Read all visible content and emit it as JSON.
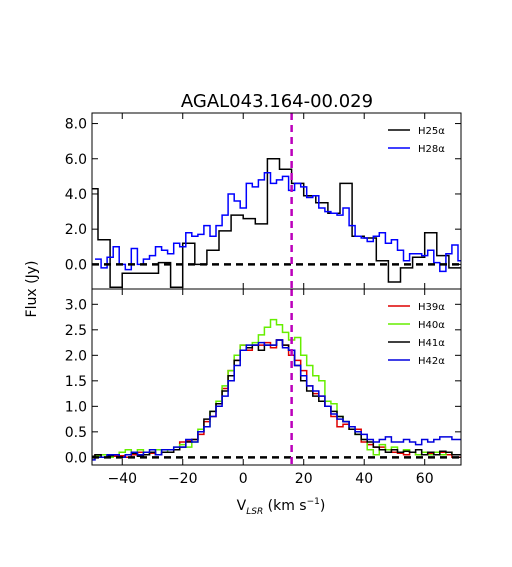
{
  "chart_data": [
    {
      "type": "line",
      "panel": "top",
      "title": "AGAL043.164-00.029",
      "ylabel": "Flux (Jy)",
      "xlim": [
        -50,
        72
      ],
      "ylim": [
        -1.4,
        8.6
      ],
      "yticks": [
        0.0,
        2.0,
        4.0,
        6.0,
        8.0
      ],
      "ytick_labels": [
        "0.0",
        "2.0",
        "4.0",
        "6.0",
        "8.0"
      ],
      "reference_velocity": 16.0,
      "zero_line": 0.0,
      "legend_position": "top-right",
      "series": [
        {
          "name": "H25α",
          "color": "#000000",
          "step": "mid",
          "x": [
            -50,
            -46,
            -42,
            -38,
            -34,
            -30,
            -26,
            -22,
            -18,
            -14,
            -10,
            -6,
            -2,
            2,
            6,
            10,
            14,
            18,
            22,
            26,
            30,
            34,
            38,
            42,
            46,
            50,
            54,
            58,
            62,
            66,
            70,
            72
          ],
          "y": [
            4.3,
            1.4,
            -1.3,
            -0.5,
            -0.5,
            -0.5,
            0.1,
            -1.3,
            1.2,
            0.0,
            0.8,
            1.9,
            2.8,
            2.6,
            2.3,
            6.0,
            5.4,
            4.6,
            3.9,
            3.5,
            2.9,
            4.6,
            1.6,
            1.5,
            0.2,
            -1.0,
            -0.2,
            0.4,
            1.8,
            0.5,
            -0.2,
            -0.2
          ]
        },
        {
          "name": "H28α",
          "color": "#0000ff",
          "step": "mid",
          "x": [
            -48,
            -46,
            -44,
            -42,
            -40,
            -38,
            -36,
            -34,
            -32,
            -30,
            -28,
            -26,
            -24,
            -22,
            -20,
            -18,
            -16,
            -14,
            -12,
            -10,
            -8,
            -6,
            -4,
            -2,
            0,
            2,
            4,
            6,
            8,
            10,
            12,
            14,
            16,
            18,
            20,
            22,
            24,
            26,
            28,
            30,
            32,
            34,
            36,
            38,
            40,
            42,
            44,
            46,
            48,
            50,
            52,
            54,
            56,
            58,
            60,
            62,
            64,
            66,
            68,
            70,
            72
          ],
          "y": [
            0.3,
            -0.2,
            0.4,
            1.0,
            0.0,
            -0.3,
            0.9,
            0.0,
            0.3,
            0.5,
            1.0,
            0.8,
            0.6,
            1.2,
            1.0,
            1.8,
            1.6,
            1.7,
            2.2,
            1.6,
            2.2,
            2.8,
            4.0,
            3.6,
            3.2,
            4.6,
            4.4,
            4.8,
            5.2,
            4.6,
            4.8,
            5.0,
            4.2,
            4.6,
            4.4,
            3.8,
            3.9,
            3.2,
            3.0,
            2.9,
            2.8,
            3.2,
            2.2,
            1.6,
            1.5,
            1.3,
            1.6,
            1.8,
            1.2,
            1.4,
            0.8,
            0.2,
            0.6,
            0.6,
            0.5,
            0.8,
            0.1,
            -0.4,
            0.6,
            1.1,
            0.2
          ]
        }
      ]
    },
    {
      "type": "line",
      "panel": "bottom",
      "xlabel": "V",
      "xlabel_sub": "LSR",
      "xlabel_units": " (km s",
      "xlabel_sup": "−1",
      "xlabel_close": ")",
      "xlim": [
        -50,
        72
      ],
      "ylim": [
        -0.15,
        3.3
      ],
      "xticks": [
        -40,
        -20,
        0,
        20,
        40,
        60
      ],
      "xtick_labels": [
        "−40",
        "−20",
        "0",
        "20",
        "40",
        "60"
      ],
      "yticks": [
        0.0,
        0.5,
        1.0,
        1.5,
        2.0,
        2.5,
        3.0
      ],
      "ytick_labels": [
        "0.0",
        "0.5",
        "1.0",
        "1.5",
        "2.0",
        "2.5",
        "3.0"
      ],
      "reference_velocity": 16.0,
      "zero_line": 0.0,
      "legend_position": "top-right",
      "series": [
        {
          "name": "H39α",
          "color": "#dd0000",
          "step": "mid",
          "x": [
            -50,
            -48,
            -46,
            -44,
            -42,
            -40,
            -38,
            -36,
            -34,
            -32,
            -30,
            -28,
            -26,
            -24,
            -22,
            -20,
            -18,
            -16,
            -14,
            -12,
            -10,
            -8,
            -6,
            -4,
            -2,
            0,
            2,
            4,
            6,
            8,
            10,
            12,
            14,
            16,
            18,
            20,
            22,
            24,
            26,
            28,
            30,
            32,
            34,
            36,
            38,
            40,
            42,
            44,
            46,
            48,
            50,
            52,
            54,
            56,
            58,
            60,
            62,
            64,
            66,
            68,
            70,
            72
          ],
          "y": [
            0.02,
            0.05,
            0.0,
            0.05,
            0.02,
            0.03,
            0.0,
            0.05,
            0.1,
            0.05,
            0.08,
            0.05,
            0.1,
            0.1,
            0.15,
            0.3,
            0.32,
            0.35,
            0.45,
            0.7,
            0.8,
            1.05,
            1.35,
            1.7,
            1.9,
            2.2,
            2.1,
            2.2,
            2.2,
            2.25,
            2.15,
            2.3,
            2.2,
            2.0,
            1.9,
            1.7,
            1.4,
            1.25,
            1.2,
            1.0,
            0.8,
            0.6,
            0.65,
            0.55,
            0.55,
            0.3,
            0.25,
            0.2,
            0.2,
            0.15,
            0.1,
            0.08,
            0.05,
            0.1,
            0.05,
            0.1,
            0.08,
            0.05,
            0.1,
            0.05,
            0.0,
            0.0
          ]
        },
        {
          "name": "H40α",
          "color": "#66ee00",
          "step": "mid",
          "x": [
            -50,
            -48,
            -46,
            -44,
            -42,
            -40,
            -38,
            -36,
            -34,
            -32,
            -30,
            -28,
            -26,
            -24,
            -22,
            -20,
            -18,
            -16,
            -14,
            -12,
            -10,
            -8,
            -6,
            -4,
            -2,
            0,
            2,
            4,
            6,
            8,
            10,
            12,
            14,
            16,
            18,
            20,
            22,
            24,
            26,
            28,
            30,
            32,
            34,
            36,
            38,
            40,
            42,
            44,
            46,
            48,
            50,
            52,
            54,
            56,
            58,
            60,
            62,
            64,
            66,
            68,
            70,
            72
          ],
          "y": [
            0.0,
            0.02,
            0.05,
            0.0,
            0.05,
            0.1,
            0.15,
            0.1,
            0.15,
            0.05,
            0.1,
            0.15,
            0.1,
            0.15,
            0.2,
            0.25,
            0.2,
            0.3,
            0.55,
            0.6,
            0.9,
            1.1,
            1.4,
            1.7,
            2.0,
            2.2,
            2.2,
            2.25,
            2.4,
            2.55,
            2.7,
            2.6,
            2.45,
            2.3,
            2.35,
            2.0,
            1.8,
            1.6,
            1.5,
            1.1,
            1.05,
            0.8,
            0.7,
            0.55,
            0.45,
            0.35,
            0.15,
            0.05,
            0.25,
            0.15,
            0.2,
            0.1,
            0.15,
            0.1,
            0.05,
            0.1,
            0.05,
            0.1,
            0.05,
            0.1,
            0.05,
            0.05
          ]
        },
        {
          "name": "H41α",
          "color": "#000000",
          "step": "mid",
          "x": [
            -50,
            -48,
            -46,
            -44,
            -42,
            -40,
            -38,
            -36,
            -34,
            -32,
            -30,
            -28,
            -26,
            -24,
            -22,
            -20,
            -18,
            -16,
            -14,
            -12,
            -10,
            -8,
            -6,
            -4,
            -2,
            0,
            2,
            4,
            6,
            8,
            10,
            12,
            14,
            16,
            18,
            20,
            22,
            24,
            26,
            28,
            30,
            32,
            34,
            36,
            38,
            40,
            42,
            44,
            46,
            48,
            50,
            52,
            54,
            56,
            58,
            60,
            62,
            64,
            66,
            68,
            70,
            72
          ],
          "y": [
            0.02,
            0.05,
            0.0,
            0.03,
            0.05,
            0.0,
            0.05,
            0.08,
            0.02,
            0.05,
            0.1,
            0.05,
            0.1,
            0.1,
            0.15,
            0.2,
            0.3,
            0.35,
            0.5,
            0.75,
            0.9,
            1.05,
            1.3,
            1.6,
            1.9,
            2.1,
            2.15,
            2.2,
            2.1,
            2.2,
            2.2,
            2.3,
            2.2,
            2.1,
            1.8,
            1.5,
            1.3,
            1.2,
            1.1,
            1.0,
            0.9,
            0.8,
            0.7,
            0.55,
            0.45,
            0.35,
            0.3,
            0.2,
            0.15,
            0.1,
            0.15,
            0.1,
            0.12,
            0.1,
            0.15,
            0.05,
            0.1,
            0.05,
            0.12,
            0.1,
            0.05,
            0.05
          ]
        },
        {
          "name": "H42α",
          "color": "#0000dd",
          "step": "mid",
          "x": [
            -50,
            -48,
            -46,
            -44,
            -42,
            -40,
            -38,
            -36,
            -34,
            -32,
            -30,
            -28,
            -26,
            -24,
            -22,
            -20,
            -18,
            -16,
            -14,
            -12,
            -10,
            -8,
            -6,
            -4,
            -2,
            0,
            2,
            4,
            6,
            8,
            10,
            12,
            14,
            16,
            18,
            20,
            22,
            24,
            26,
            28,
            30,
            32,
            34,
            36,
            38,
            40,
            42,
            44,
            46,
            48,
            50,
            52,
            54,
            56,
            58,
            60,
            62,
            64,
            66,
            68,
            70,
            72
          ],
          "y": [
            -0.05,
            0.0,
            0.0,
            0.05,
            0.05,
            0.0,
            0.05,
            0.1,
            0.05,
            0.1,
            0.15,
            0.05,
            0.15,
            0.15,
            0.2,
            0.2,
            0.35,
            0.3,
            0.5,
            0.6,
            0.8,
            1.0,
            1.2,
            1.5,
            1.8,
            2.1,
            2.2,
            2.2,
            2.25,
            2.2,
            2.2,
            2.3,
            2.15,
            2.1,
            1.8,
            1.6,
            1.4,
            1.3,
            1.2,
            1.0,
            0.85,
            0.75,
            0.7,
            0.6,
            0.5,
            0.45,
            0.35,
            0.3,
            0.35,
            0.4,
            0.3,
            0.3,
            0.35,
            0.3,
            0.25,
            0.35,
            0.3,
            0.35,
            0.4,
            0.4,
            0.35,
            0.35
          ]
        }
      ]
    }
  ]
}
